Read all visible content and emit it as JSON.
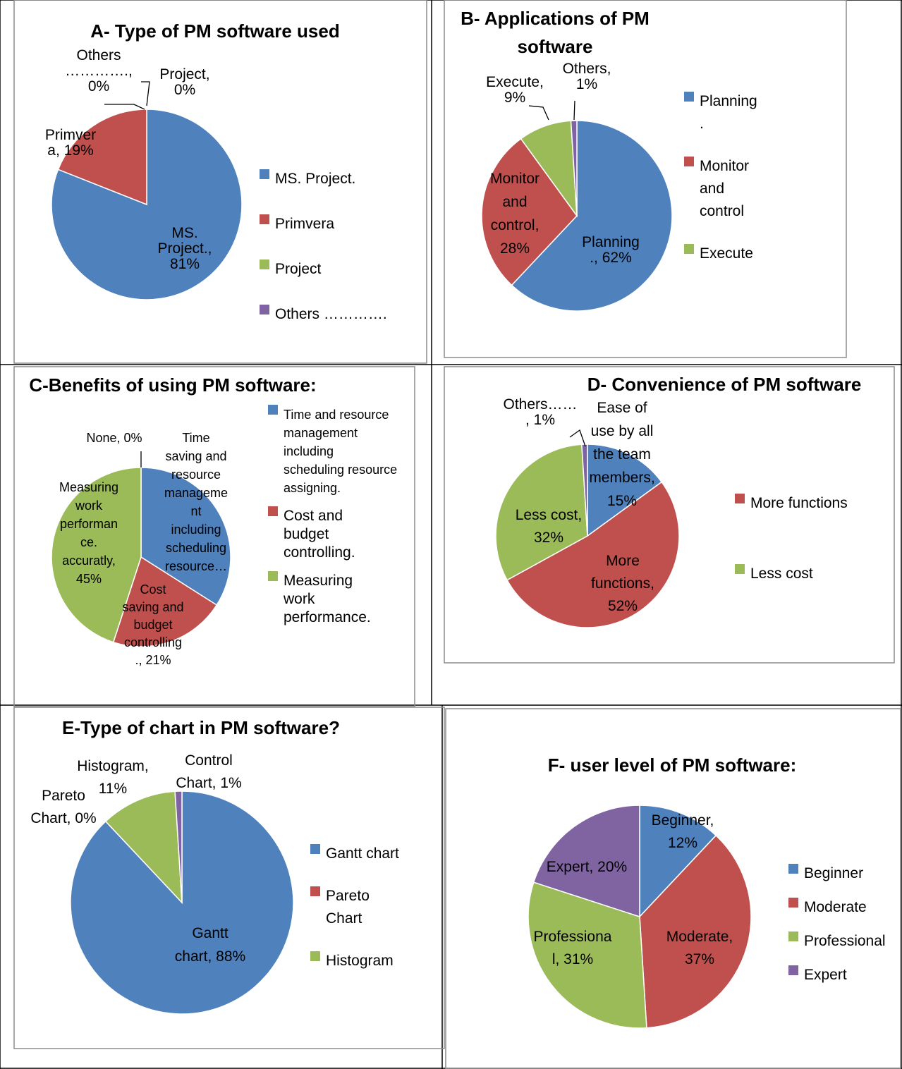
{
  "colors": {
    "blue": "#4F81BD",
    "red": "#C0504D",
    "green": "#9BBB59",
    "purple": "#8064A2"
  },
  "chart_data": [
    {
      "id": "A",
      "type": "pie",
      "title": "A- Type of PM software  used",
      "slices": [
        {
          "name": "MS. Project.",
          "value": 81,
          "color": "#4F81BD",
          "label": [
            "MS.",
            "Project.,",
            "81%"
          ]
        },
        {
          "name": "Primvera",
          "value": 19,
          "color": "#C0504D",
          "label": [
            "Primver",
            "a, 19%"
          ]
        },
        {
          "name": "Project",
          "value": 0,
          "color": "#9BBB59",
          "label": [
            "Project,",
            "0%"
          ]
        },
        {
          "name": "Others …………..",
          "value": 0,
          "color": "#8064A2",
          "label": [
            "Others",
            "………….,",
            "0%"
          ]
        }
      ],
      "legend": [
        {
          "label": [
            "MS. Project."
          ],
          "color": "#4F81BD"
        },
        {
          "label": [
            "Primvera"
          ],
          "color": "#C0504D"
        },
        {
          "label": [
            "Project"
          ],
          "color": "#9BBB59"
        },
        {
          "label": [
            "Others …………."
          ],
          "color": "#8064A2"
        }
      ]
    },
    {
      "id": "B",
      "type": "pie",
      "title": [
        "B- Applications of  PM",
        "software"
      ],
      "slices": [
        {
          "name": "Planning",
          "value": 62,
          "color": "#4F81BD",
          "label": [
            "Planning",
            "., 62%"
          ]
        },
        {
          "name": "Monitor and control",
          "value": 28,
          "color": "#C0504D",
          "label": [
            "Monitor",
            "and",
            "control,",
            "28%"
          ]
        },
        {
          "name": "Execute",
          "value": 9,
          "color": "#9BBB59",
          "label": [
            "Execute,",
            "9%"
          ]
        },
        {
          "name": "Others",
          "value": 1,
          "color": "#8064A2",
          "label": [
            "Others,",
            "1%"
          ]
        }
      ],
      "legend": [
        {
          "label": [
            "Planning",
            "."
          ],
          "color": "#4F81BD"
        },
        {
          "label": [
            "Monitor",
            "and",
            "control"
          ],
          "color": "#C0504D"
        },
        {
          "label": [
            "Execute"
          ],
          "color": "#9BBB59"
        }
      ]
    },
    {
      "id": "C",
      "type": "pie",
      "title": "C-Benefits of using PM software:",
      "slices": [
        {
          "name": "Time saving and resource management including scheduling resource…",
          "value": 34,
          "color": "#4F81BD",
          "label": [
            "Time",
            "saving and",
            "resource",
            "manageme",
            "nt",
            "including",
            "scheduling",
            "resource…"
          ]
        },
        {
          "name": "Cost saving and budget controlling.",
          "value": 21,
          "color": "#C0504D",
          "label": [
            "Cost",
            "saving and",
            "budget",
            "controlling",
            "., 21%"
          ]
        },
        {
          "name": "Measuring work performance. accuratly",
          "value": 45,
          "color": "#9BBB59",
          "label": [
            "Measuring",
            "work",
            "performan",
            "ce.",
            "accuratly,",
            "45%"
          ]
        },
        {
          "name": "None",
          "value": 0,
          "color": "#8064A2",
          "label": [
            "None, 0%"
          ]
        }
      ],
      "legend": [
        {
          "label": [
            "Time and resource",
            "management",
            "including",
            "scheduling resource",
            "assigning."
          ],
          "color": "#4F81BD"
        },
        {
          "label": [
            "Cost and",
            "budget",
            "controlling."
          ],
          "color": "#C0504D"
        },
        {
          "label": [
            "Measuring",
            "work",
            "performance."
          ],
          "color": "#9BBB59"
        }
      ]
    },
    {
      "id": "D",
      "type": "pie",
      "title": "D- Convenience   of PM software",
      "slices": [
        {
          "name": "Ease of use by all the team members",
          "value": 15,
          "color": "#4F81BD",
          "label": [
            "Ease of",
            "use by all",
            "the team",
            "members,",
            "15%"
          ]
        },
        {
          "name": "More functions",
          "value": 52,
          "color": "#C0504D",
          "label": [
            "More",
            "functions,",
            "52%"
          ]
        },
        {
          "name": "Less cost",
          "value": 32,
          "color": "#9BBB59",
          "label": [
            "Less cost,",
            "32%"
          ]
        },
        {
          "name": "Others……",
          "value": 1,
          "color": "#8064A2",
          "label": [
            "Others……",
            ", 1%"
          ]
        }
      ],
      "legend": [
        {
          "label": [
            "More functions"
          ],
          "color": "#C0504D"
        },
        {
          "label": [
            "Less cost"
          ],
          "color": "#9BBB59"
        }
      ]
    },
    {
      "id": "E",
      "type": "pie",
      "title": "E-Type of chart in PM software?",
      "slices": [
        {
          "name": "Gantt chart",
          "value": 88,
          "color": "#4F81BD",
          "label": [
            "Gantt",
            "chart, 88%"
          ]
        },
        {
          "name": "Pareto Chart",
          "value": 0,
          "color": "#C0504D",
          "label": [
            "Pareto",
            "Chart, 0%"
          ]
        },
        {
          "name": "Histogram",
          "value": 11,
          "color": "#9BBB59",
          "label": [
            "Histogram,",
            "11%"
          ]
        },
        {
          "name": "Control Chart",
          "value": 1,
          "color": "#8064A2",
          "label": [
            "Control",
            "Chart, 1%"
          ]
        }
      ],
      "legend": [
        {
          "label": [
            "Gantt chart"
          ],
          "color": "#4F81BD"
        },
        {
          "label": [
            "Pareto",
            "Chart"
          ],
          "color": "#C0504D"
        },
        {
          "label": [
            "Histogram"
          ],
          "color": "#9BBB59"
        }
      ]
    },
    {
      "id": "F",
      "type": "pie",
      "title": "F- user level of PM software:",
      "slices": [
        {
          "name": "Beginner",
          "value": 12,
          "color": "#4F81BD",
          "label": [
            "Beginner,",
            "12%"
          ]
        },
        {
          "name": "Moderate",
          "value": 37,
          "color": "#C0504D",
          "label": [
            "Moderate,",
            "37%"
          ]
        },
        {
          "name": "Professional",
          "value": 31,
          "color": "#9BBB59",
          "label": [
            "Professiona",
            "l, 31%"
          ]
        },
        {
          "name": "Expert",
          "value": 20,
          "color": "#8064A2",
          "label": [
            "Expert, 20%"
          ]
        }
      ],
      "legend": [
        {
          "label": [
            "Beginner"
          ],
          "color": "#4F81BD"
        },
        {
          "label": [
            "Moderate"
          ],
          "color": "#C0504D"
        },
        {
          "label": [
            "Professional"
          ],
          "color": "#9BBB59"
        },
        {
          "label": [
            "Expert"
          ],
          "color": "#8064A2"
        }
      ]
    }
  ]
}
